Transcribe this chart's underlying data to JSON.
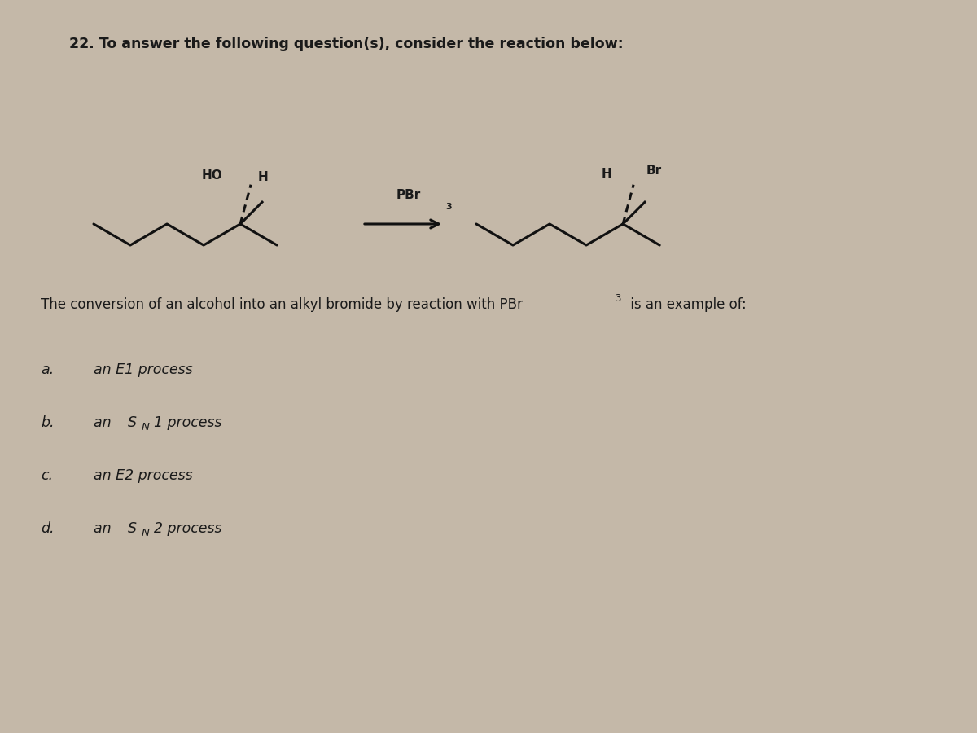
{
  "bg_color": "#c4b8a8",
  "paper_color": "#ddd5c8",
  "title": "22. To answer the following question(s), consider the reaction below:",
  "question_text": "The conversion of an alcohol into an alkyl bromide by reaction with PBr",
  "question_text2": " is an example of:",
  "reagent": "PBr",
  "reagent_sub": "3",
  "reactant_ho": "HO",
  "reactant_h": "H",
  "product_h": "H",
  "product_br": "Br",
  "text_color": "#1a1a1a",
  "line_color": "#111111",
  "options": [
    {
      "label": "a.",
      "text_plain": "an E1 process",
      "sn": false
    },
    {
      "label": "b.",
      "text_pre": "an ",
      "text_S": "S",
      "text_sub": "N",
      "text_post": "1 process",
      "sn": true
    },
    {
      "label": "c.",
      "text_plain": "an E2 process",
      "sn": false
    },
    {
      "label": "d.",
      "text_pre": "an ",
      "text_S": "S",
      "text_sub": "N",
      "text_post": "2 process",
      "sn": true
    }
  ]
}
